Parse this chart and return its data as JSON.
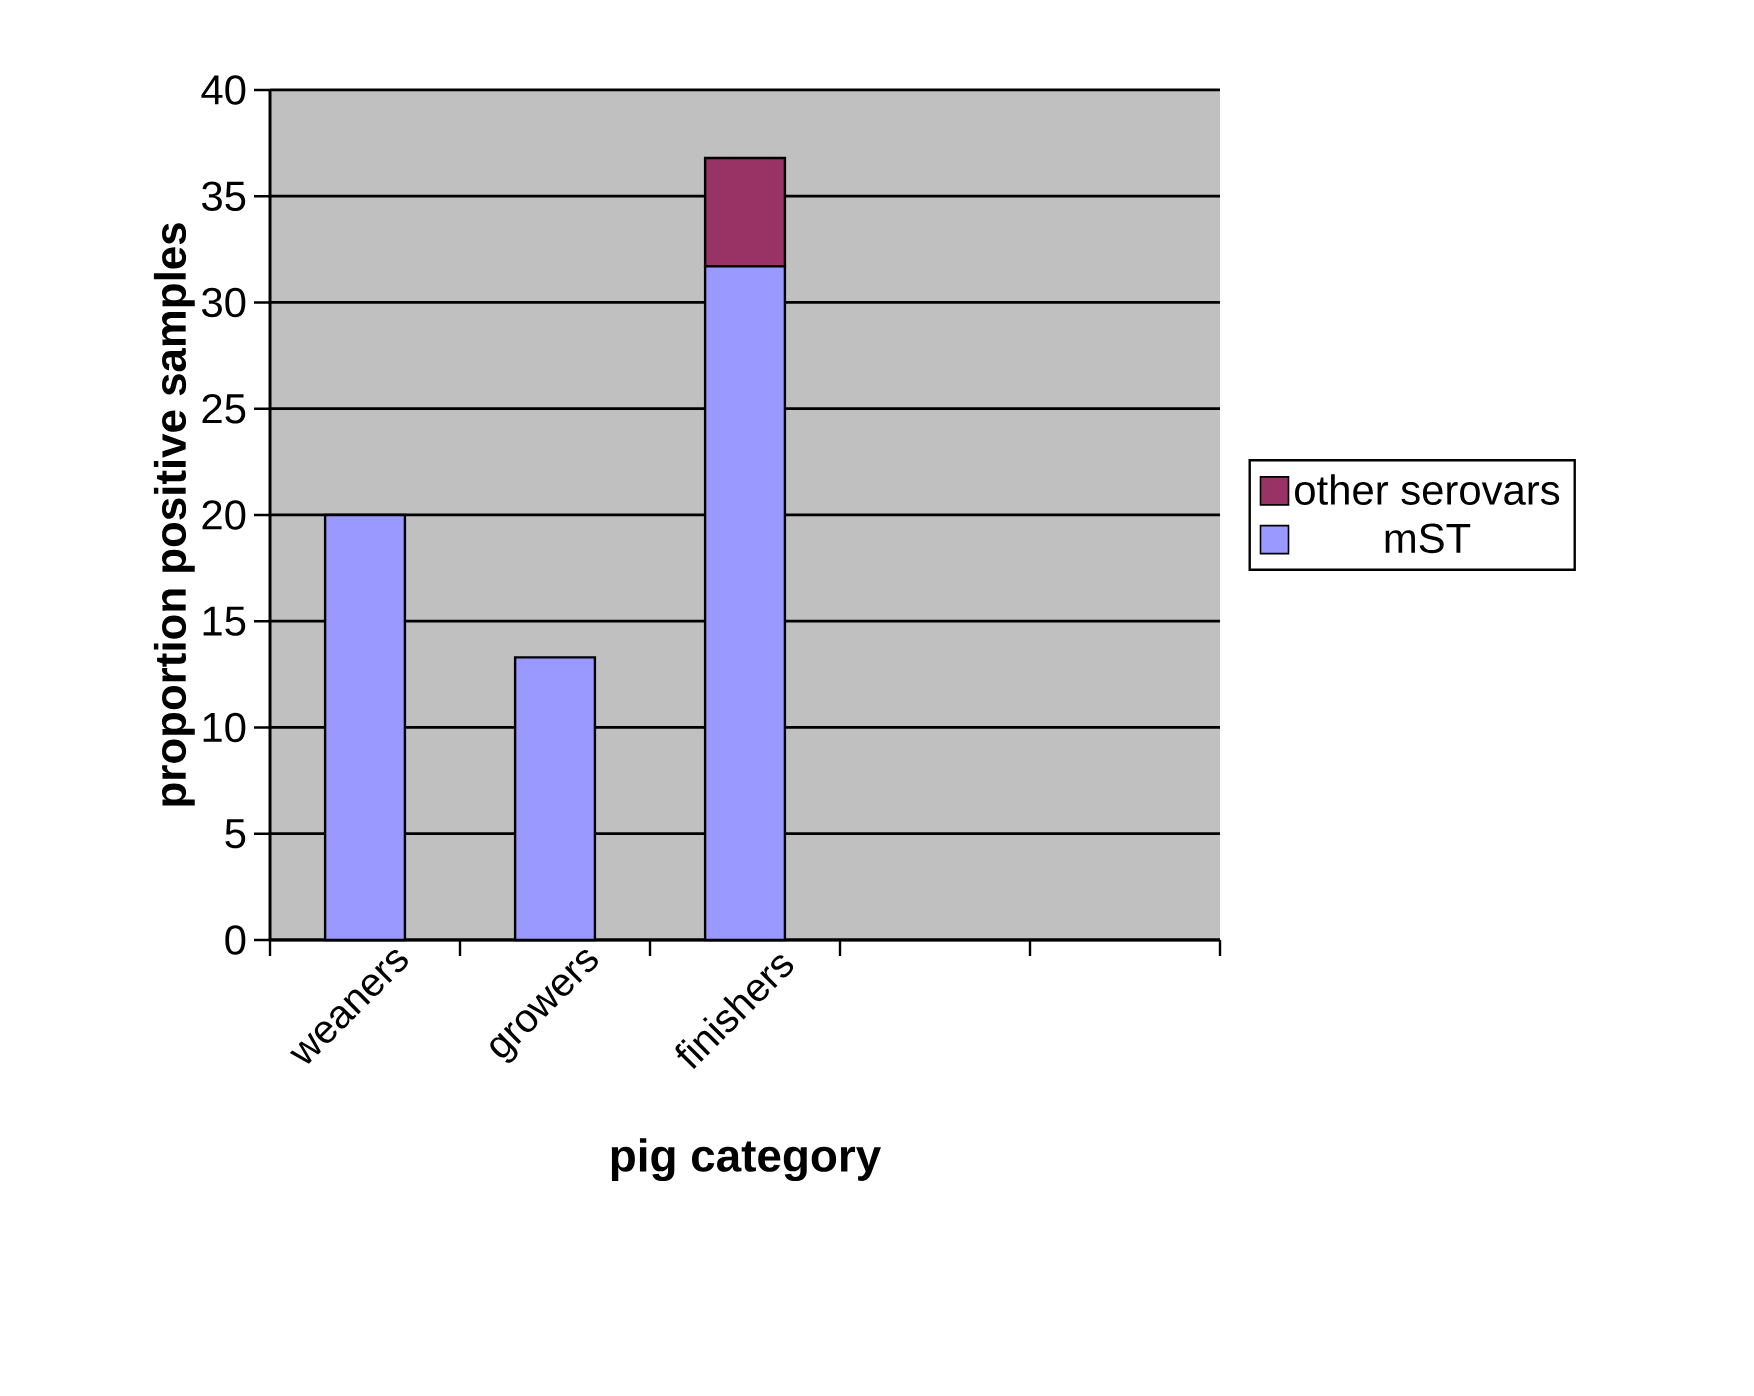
{
  "chart_data": {
    "type": "bar",
    "stacked": true,
    "xlabel": "pig category",
    "ylabel": "proportion positive samples",
    "categories": [
      "weaners",
      "growers",
      "finishers",
      null,
      null
    ],
    "series": [
      {
        "name": "mST",
        "color": "#9999ff",
        "values": [
          20,
          13.3,
          31.7,
          null,
          null
        ]
      },
      {
        "name": "other serovars",
        "color": "#993366",
        "values": [
          0,
          0,
          5.1,
          null,
          null
        ]
      }
    ],
    "ylim": [
      0,
      40
    ],
    "yticks": [
      0,
      5,
      10,
      15,
      20,
      25,
      30,
      35,
      40
    ],
    "grid": "y",
    "legend": "right"
  }
}
